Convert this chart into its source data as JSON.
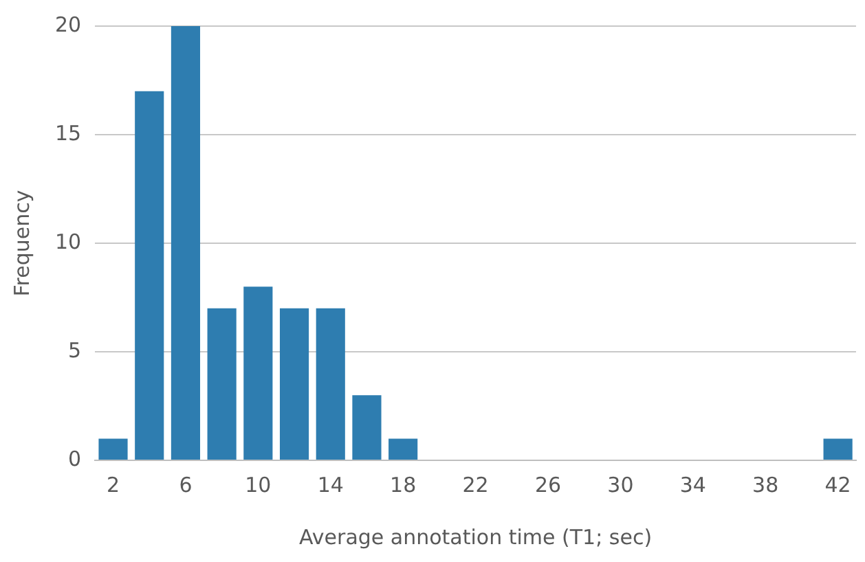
{
  "chart_data": {
    "type": "histogram",
    "xlabel": "Average annotation time (T1; sec)",
    "ylabel": "Frequency",
    "bins": [
      1,
      3,
      5,
      7,
      9,
      11,
      13,
      15,
      17,
      19,
      21,
      23,
      25,
      27,
      29,
      31,
      33,
      35,
      37,
      39,
      41,
      43
    ],
    "values": [
      1,
      17,
      20,
      7,
      8,
      7,
      7,
      3,
      1,
      0,
      0,
      0,
      0,
      0,
      0,
      0,
      0,
      0,
      0,
      0,
      1
    ],
    "color": "#2e7db0",
    "xlim": [
      1,
      43
    ],
    "xticks": [
      2,
      6,
      10,
      14,
      18,
      22,
      26,
      30,
      34,
      38,
      42
    ],
    "ylim": [
      0,
      20
    ],
    "yticks": [
      0,
      5,
      10,
      15,
      20
    ],
    "grid": "y",
    "legend": false
  }
}
